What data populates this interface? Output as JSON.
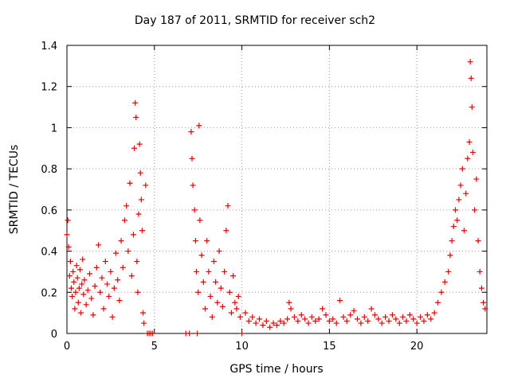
{
  "chart_data": {
    "type": "scatter",
    "title": "Day 187 of 2011, SRMTID for receiver sch2",
    "xlabel": "GPS time / hours",
    "ylabel": "SRMTID / TECUs",
    "xlim": [
      0,
      24
    ],
    "ylim": [
      0,
      1.4
    ],
    "x_ticks": [
      "0",
      "5",
      "10",
      "15",
      "20"
    ],
    "x_tick_values": [
      0,
      5,
      10,
      15,
      20
    ],
    "y_ticks": [
      "0",
      "0.2",
      "0.4",
      "0.6",
      "0.8",
      "1",
      "1.2",
      "1.4"
    ],
    "y_tick_values": [
      0,
      0.2,
      0.4,
      0.6,
      0.8,
      1.0,
      1.2,
      1.4
    ],
    "grid": true,
    "marker": "+",
    "series": [
      {
        "color": "#e00000",
        "points": [
          [
            0.0,
            0.48
          ],
          [
            0.05,
            0.55
          ],
          [
            0.1,
            0.42
          ],
          [
            0.15,
            0.28
          ],
          [
            0.2,
            0.35
          ],
          [
            0.25,
            0.22
          ],
          [
            0.3,
            0.18
          ],
          [
            0.35,
            0.3
          ],
          [
            0.4,
            0.25
          ],
          [
            0.45,
            0.12
          ],
          [
            0.5,
            0.2
          ],
          [
            0.55,
            0.33
          ],
          [
            0.6,
            0.27
          ],
          [
            0.65,
            0.15
          ],
          [
            0.7,
            0.22
          ],
          [
            0.75,
            0.31
          ],
          [
            0.8,
            0.1
          ],
          [
            0.85,
            0.24
          ],
          [
            0.9,
            0.36
          ],
          [
            0.95,
            0.19
          ],
          [
            1.0,
            0.26
          ],
          [
            1.1,
            0.14
          ],
          [
            1.2,
            0.21
          ],
          [
            1.3,
            0.29
          ],
          [
            1.4,
            0.17
          ],
          [
            1.5,
            0.09
          ],
          [
            1.6,
            0.23
          ],
          [
            1.7,
            0.32
          ],
          [
            1.8,
            0.43
          ],
          [
            1.9,
            0.2
          ],
          [
            2.0,
            0.27
          ],
          [
            2.1,
            0.12
          ],
          [
            2.2,
            0.35
          ],
          [
            2.3,
            0.24
          ],
          [
            2.4,
            0.18
          ],
          [
            2.5,
            0.3
          ],
          [
            2.6,
            0.08
          ],
          [
            2.7,
            0.22
          ],
          [
            2.8,
            0.39
          ],
          [
            2.9,
            0.26
          ],
          [
            3.0,
            0.16
          ],
          [
            3.1,
            0.45
          ],
          [
            3.2,
            0.32
          ],
          [
            3.3,
            0.55
          ],
          [
            3.4,
            0.62
          ],
          [
            3.5,
            0.4
          ],
          [
            3.6,
            0.73
          ],
          [
            3.7,
            0.28
          ],
          [
            3.8,
            0.48
          ],
          [
            3.85,
            0.9
          ],
          [
            3.9,
            1.12
          ],
          [
            3.95,
            1.05
          ],
          [
            4.0,
            0.35
          ],
          [
            4.05,
            0.2
          ],
          [
            4.1,
            0.58
          ],
          [
            4.15,
            0.92
          ],
          [
            4.2,
            0.78
          ],
          [
            4.25,
            0.65
          ],
          [
            4.3,
            0.5
          ],
          [
            4.35,
            0.1
          ],
          [
            4.4,
            0.05
          ],
          [
            4.5,
            0.72
          ],
          [
            4.6,
            0.0
          ],
          [
            4.7,
            0.0
          ],
          [
            4.8,
            0.0
          ],
          [
            4.9,
            0.0
          ],
          [
            6.8,
            0.0
          ],
          [
            7.0,
            0.0
          ],
          [
            7.1,
            0.98
          ],
          [
            7.15,
            0.85
          ],
          [
            7.2,
            0.72
          ],
          [
            7.3,
            0.6
          ],
          [
            7.35,
            0.45
          ],
          [
            7.4,
            0.3
          ],
          [
            7.45,
            0.0
          ],
          [
            7.5,
            0.2
          ],
          [
            7.55,
            1.01
          ],
          [
            7.6,
            0.55
          ],
          [
            7.7,
            0.38
          ],
          [
            7.8,
            0.25
          ],
          [
            7.9,
            0.12
          ],
          [
            8.0,
            0.45
          ],
          [
            8.1,
            0.3
          ],
          [
            8.2,
            0.18
          ],
          [
            8.3,
            0.08
          ],
          [
            8.4,
            0.35
          ],
          [
            8.5,
            0.25
          ],
          [
            8.6,
            0.15
          ],
          [
            8.7,
            0.4
          ],
          [
            8.8,
            0.22
          ],
          [
            8.9,
            0.13
          ],
          [
            9.0,
            0.3
          ],
          [
            9.1,
            0.5
          ],
          [
            9.2,
            0.62
          ],
          [
            9.3,
            0.2
          ],
          [
            9.4,
            0.1
          ],
          [
            9.5,
            0.28
          ],
          [
            9.6,
            0.15
          ],
          [
            9.7,
            0.12
          ],
          [
            9.8,
            0.18
          ],
          [
            9.9,
            0.08
          ],
          [
            10.0,
            0.0
          ],
          [
            10.2,
            0.1
          ],
          [
            10.4,
            0.06
          ],
          [
            10.6,
            0.08
          ],
          [
            10.8,
            0.05
          ],
          [
            11.0,
            0.07
          ],
          [
            11.2,
            0.04
          ],
          [
            11.4,
            0.06
          ],
          [
            11.6,
            0.03
          ],
          [
            11.8,
            0.05
          ],
          [
            12.0,
            0.04
          ],
          [
            12.2,
            0.06
          ],
          [
            12.4,
            0.05
          ],
          [
            12.6,
            0.07
          ],
          [
            12.7,
            0.15
          ],
          [
            12.8,
            0.12
          ],
          [
            13.0,
            0.08
          ],
          [
            13.2,
            0.06
          ],
          [
            13.4,
            0.09
          ],
          [
            13.6,
            0.07
          ],
          [
            13.8,
            0.05
          ],
          [
            14.0,
            0.08
          ],
          [
            14.2,
            0.06
          ],
          [
            14.4,
            0.07
          ],
          [
            14.6,
            0.12
          ],
          [
            14.8,
            0.09
          ],
          [
            15.0,
            0.06
          ],
          [
            15.2,
            0.07
          ],
          [
            15.4,
            0.05
          ],
          [
            15.6,
            0.16
          ],
          [
            15.8,
            0.08
          ],
          [
            16.0,
            0.06
          ],
          [
            16.2,
            0.09
          ],
          [
            16.4,
            0.11
          ],
          [
            16.6,
            0.07
          ],
          [
            16.8,
            0.05
          ],
          [
            17.0,
            0.08
          ],
          [
            17.2,
            0.06
          ],
          [
            17.4,
            0.12
          ],
          [
            17.6,
            0.09
          ],
          [
            17.8,
            0.07
          ],
          [
            18.0,
            0.05
          ],
          [
            18.2,
            0.08
          ],
          [
            18.4,
            0.06
          ],
          [
            18.6,
            0.09
          ],
          [
            18.8,
            0.07
          ],
          [
            19.0,
            0.05
          ],
          [
            19.2,
            0.08
          ],
          [
            19.4,
            0.06
          ],
          [
            19.6,
            0.09
          ],
          [
            19.8,
            0.07
          ],
          [
            20.0,
            0.05
          ],
          [
            20.2,
            0.08
          ],
          [
            20.4,
            0.06
          ],
          [
            20.6,
            0.09
          ],
          [
            20.8,
            0.07
          ],
          [
            21.0,
            0.1
          ],
          [
            21.2,
            0.15
          ],
          [
            21.4,
            0.2
          ],
          [
            21.6,
            0.25
          ],
          [
            21.8,
            0.3
          ],
          [
            21.9,
            0.38
          ],
          [
            22.0,
            0.45
          ],
          [
            22.1,
            0.52
          ],
          [
            22.2,
            0.6
          ],
          [
            22.3,
            0.55
          ],
          [
            22.4,
            0.65
          ],
          [
            22.5,
            0.72
          ],
          [
            22.6,
            0.8
          ],
          [
            22.7,
            0.5
          ],
          [
            22.8,
            0.68
          ],
          [
            22.9,
            0.85
          ],
          [
            23.0,
            0.93
          ],
          [
            23.05,
            1.32
          ],
          [
            23.1,
            1.24
          ],
          [
            23.15,
            1.1
          ],
          [
            23.2,
            0.88
          ],
          [
            23.3,
            0.6
          ],
          [
            23.4,
            0.75
          ],
          [
            23.5,
            0.45
          ],
          [
            23.6,
            0.3
          ],
          [
            23.7,
            0.22
          ],
          [
            23.8,
            0.15
          ],
          [
            23.9,
            0.12
          ]
        ]
      }
    ]
  }
}
